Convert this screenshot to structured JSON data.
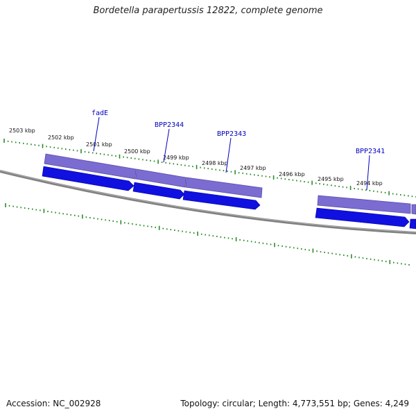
{
  "title": "Bordetella parapertussis 12822, complete genome",
  "footer": {
    "accession": "Accession: NC_002928",
    "summary": "Topology: circular; Length: 4,773,551 bp; Genes: 4,249"
  },
  "colors": {
    "backbone": "#808080",
    "tick": "#2a8a2a",
    "gene_forward": "#1010e0",
    "gene_feature": "#7a6cd0",
    "gene_label": "#0000c0",
    "background": "#ffffff"
  },
  "scale_labels": [
    "2503 kbp",
    "2502 kbp",
    "2501 kbp",
    "2500 kbp",
    "2499 kbp",
    "2498 kbp",
    "2497 kbp",
    "2496 kbp",
    "2495 kbp",
    "2494 kbp"
  ],
  "gene_labels": [
    "fadE",
    "BPP2344",
    "BPP2343",
    "BPP2341"
  ]
}
